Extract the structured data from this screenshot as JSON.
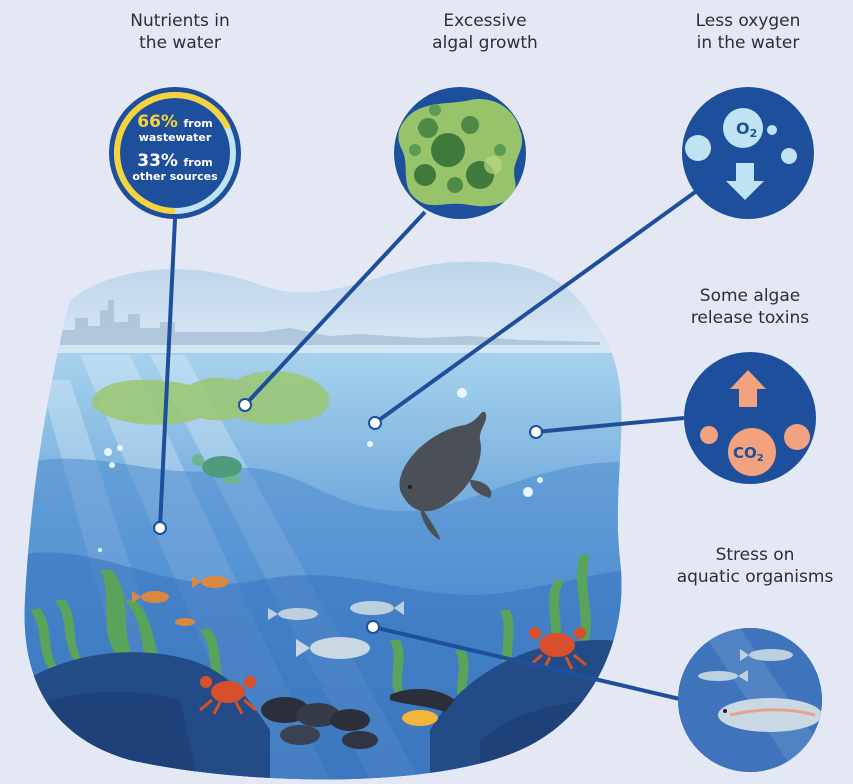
{
  "labels": {
    "nutrients": [
      "Nutrients in",
      "the water"
    ],
    "algal": [
      "Excessive",
      "algal growth"
    ],
    "oxygen": [
      "Less oxygen",
      "in the water"
    ],
    "toxins": [
      "Some algae",
      "release toxins"
    ],
    "stress": [
      "Stress on",
      "aquatic organisms"
    ]
  },
  "nutrients_circle": {
    "wastewater_pct": "66%",
    "wastewater_text": "from",
    "wastewater_text2": "wastewater",
    "other_pct": "33%",
    "other_text": "from",
    "other_text2": "other sources"
  },
  "oxygen_circle": {
    "molecule": "O",
    "subscript": "2"
  },
  "toxins_circle": {
    "molecule": "CO",
    "subscript": "2"
  },
  "colors": {
    "background": "#e3e8f4",
    "circle_blue": "#1d4f9c",
    "accent_yellow": "#f6d23c",
    "bubble_light": "#bfe3f2",
    "co2_orange": "#f2a27e",
    "water_light": "#a9d4ee",
    "water_deep": "#2d5fa6"
  },
  "icons": [
    "algae-blob-icon",
    "oxygen-bubble-icon",
    "down-arrow-icon",
    "up-arrow-icon",
    "co2-bubble-icon",
    "fish-icon",
    "seal-icon",
    "turtle-icon",
    "crab-icon",
    "mussel-icon",
    "seaweed-icon"
  ]
}
